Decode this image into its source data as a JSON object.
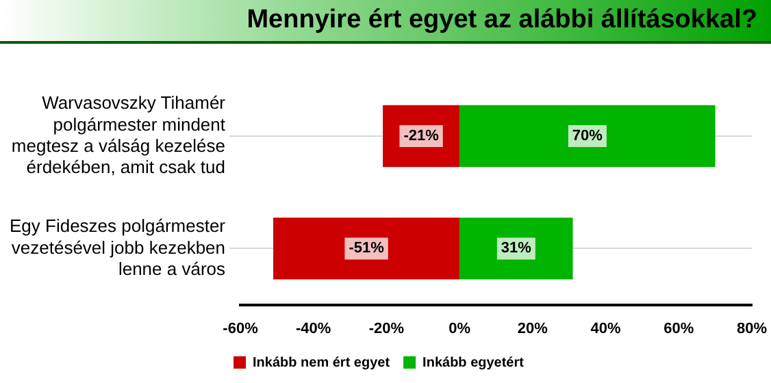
{
  "chart_data": {
    "type": "bar",
    "orientation": "horizontal",
    "stacked": true,
    "title": "Mennyire ért egyet az alábbi állításokkal?",
    "categories": [
      "Warvasovszky Tihamér polgármester mindent megtesz a válság kezelése érdekében, amit csak tud",
      "Egy Fideszes polgármester vezetésével jobb kezekben lenne a város"
    ],
    "series": [
      {
        "name": "Inkább nem ért egyet",
        "color": "#cc0000",
        "values": [
          -21,
          -51
        ],
        "value_labels": [
          "-21%",
          "-51%"
        ]
      },
      {
        "name": "Inkább egyetért",
        "color": "#00b400",
        "values": [
          70,
          31
        ],
        "value_labels": [
          "70%",
          "31%"
        ]
      }
    ],
    "xlim": [
      -60,
      80
    ],
    "xticks": [
      {
        "value": -60,
        "label": "-60%"
      },
      {
        "value": -40,
        "label": "-40%"
      },
      {
        "value": -20,
        "label": "-20%"
      },
      {
        "value": 0,
        "label": "0%"
      },
      {
        "value": 20,
        "label": "20%"
      },
      {
        "value": 40,
        "label": "40%"
      },
      {
        "value": 60,
        "label": "60%"
      },
      {
        "value": 80,
        "label": "80%"
      }
    ],
    "grid": "y",
    "legend": "bottom"
  }
}
